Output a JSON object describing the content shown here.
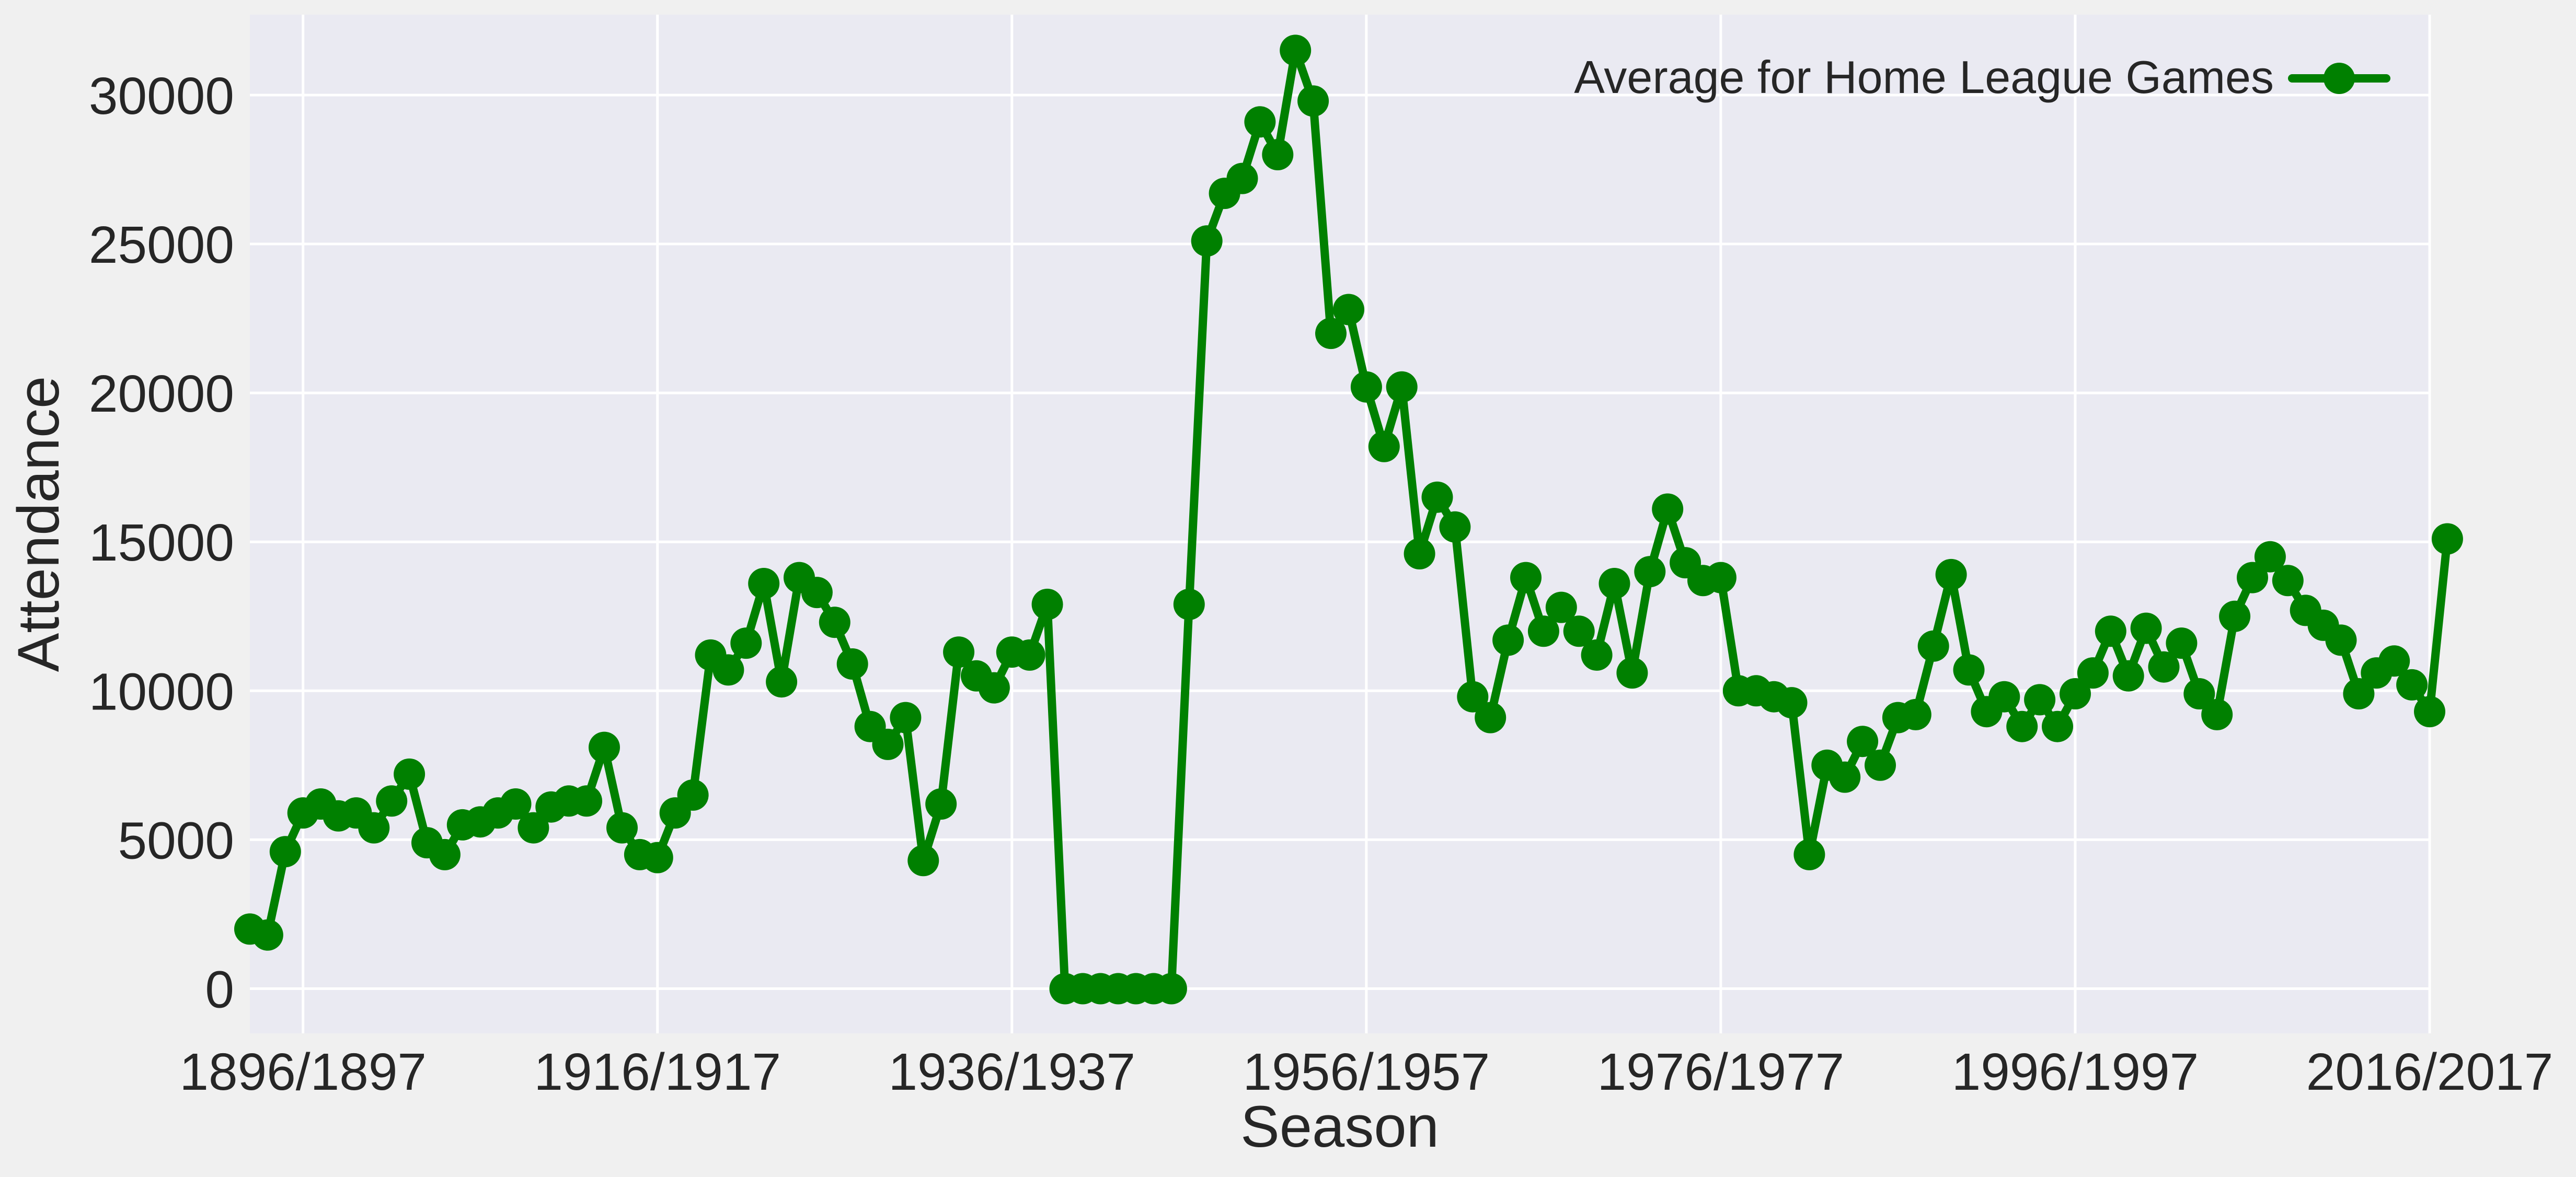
{
  "chart_data": {
    "type": "line",
    "xlabel": "Season",
    "ylabel": "Attendance",
    "x_tick_labels": [
      "1896/1897",
      "1916/1917",
      "1936/1937",
      "1956/1957",
      "1976/1977",
      "1996/1997",
      "2016/2017"
    ],
    "x_tick_index": [
      3,
      23,
      43,
      63,
      83,
      103,
      123
    ],
    "y_ticks": [
      0,
      5000,
      10000,
      15000,
      20000,
      25000,
      30000
    ],
    "xlim_index": [
      0,
      123
    ],
    "ylim": [
      -1500,
      32700
    ],
    "grid": true,
    "legend_position": "top-right",
    "colors": {
      "line": "#008000",
      "plot_bg": "#eaeaf2",
      "page_bg": "#f0f0f0",
      "grid": "#ffffff"
    },
    "series": [
      {
        "name": "Average for Home League Games",
        "values": [
          2000,
          1800,
          4600,
          5900,
          6200,
          5800,
          5900,
          5400,
          6300,
          7200,
          4900,
          4500,
          5500,
          5600,
          5900,
          6200,
          5400,
          6100,
          6300,
          6300,
          8100,
          5400,
          4500,
          4400,
          5900,
          6500,
          11200,
          10700,
          11600,
          13600,
          10300,
          13800,
          13300,
          12300,
          10900,
          8800,
          8200,
          9100,
          4300,
          6200,
          11300,
          10500,
          10100,
          11300,
          11200,
          12900,
          0,
          0,
          0,
          0,
          0,
          0,
          0,
          12900,
          25100,
          26700,
          27200,
          29100,
          28000,
          31500,
          29800,
          22000,
          22800,
          20200,
          18200,
          20200,
          14600,
          16500,
          15500,
          9800,
          9100,
          11700,
          13800,
          12000,
          12800,
          12000,
          11200,
          13600,
          10600,
          14000,
          16100,
          14300,
          13700,
          13800,
          10000,
          10000,
          9800,
          9600,
          4500,
          7500,
          7100,
          8300,
          7500,
          9100,
          9200,
          11500,
          13900,
          10700,
          9300,
          9800,
          8800,
          9700,
          8800,
          9900,
          10600,
          12000,
          10500,
          12100,
          10800,
          11600,
          9900,
          9200,
          12500,
          13800,
          14500,
          13700,
          12700,
          12200,
          11700,
          9900,
          10600,
          11000,
          10200,
          9300,
          15100
        ]
      }
    ]
  }
}
